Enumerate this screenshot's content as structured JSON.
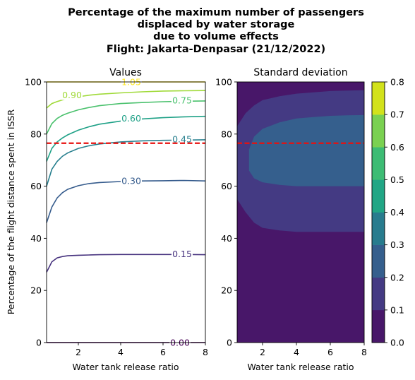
{
  "figure": {
    "title_lines": [
      "Percentage of the maximum number of passengers",
      "displaced by water storage",
      "due to volume effects",
      "Flight: Jakarta-Denpasar (21/12/2022)"
    ]
  },
  "chart_data": [
    {
      "type": "line",
      "title": "Values",
      "xlabel": "Water tank release ratio",
      "ylabel": "Percentage of the flight distance spent in ISSR",
      "xlim": [
        0.5,
        8
      ],
      "ylim": [
        0,
        100
      ],
      "xticks": [
        2,
        4,
        6,
        8
      ],
      "yticks": [
        0,
        20,
        40,
        60,
        80,
        100
      ],
      "reference_line": {
        "y": 76.5,
        "color": "#e8100e",
        "style": "dashed"
      },
      "x": [
        0.5,
        0.75,
        1.0,
        1.25,
        1.5,
        2.0,
        2.5,
        3.0,
        4.0,
        5.0,
        6.0,
        7.0,
        8.0
      ],
      "series": [
        {
          "label": "0.00",
          "color": "#440154",
          "values": [
            0,
            0,
            0,
            0,
            0,
            0,
            0,
            0,
            0,
            0,
            0,
            0,
            0
          ]
        },
        {
          "label": "0.15",
          "color": "#46327e",
          "values": [
            27,
            31,
            32.5,
            33,
            33.3,
            33.5,
            33.6,
            33.7,
            33.8,
            33.8,
            33.8,
            33.8,
            33.7
          ]
        },
        {
          "label": "0.30",
          "color": "#365c8d",
          "values": [
            46,
            52,
            55.5,
            57.5,
            58.8,
            60.2,
            61,
            61.4,
            61.8,
            62,
            62.1,
            62.2,
            62
          ]
        },
        {
          "label": "0.45",
          "color": "#277f8e",
          "values": [
            60,
            66.5,
            69.5,
            71.5,
            72.8,
            74.5,
            75.5,
            76.2,
            77,
            77.4,
            77.6,
            77.7,
            77.8
          ]
        },
        {
          "label": "0.60",
          "color": "#1fa187",
          "values": [
            69.5,
            74.5,
            77,
            78.5,
            79.7,
            81.5,
            82.8,
            83.8,
            85,
            85.8,
            86.3,
            86.6,
            86.8
          ]
        },
        {
          "label": "0.75",
          "color": "#4ac16d",
          "values": [
            80,
            84,
            86,
            87.2,
            88,
            89.3,
            90.2,
            90.9,
            91.7,
            92.1,
            92.4,
            92.6,
            92.7
          ]
        },
        {
          "label": "0.90",
          "color": "#a0da39",
          "values": [
            90,
            91.7,
            92.5,
            93.1,
            93.6,
            94.3,
            94.9,
            95.3,
            95.8,
            96.2,
            96.5,
            96.6,
            96.7
          ]
        },
        {
          "label": "1.05",
          "color": "#fde725",
          "values": [
            100,
            100,
            100,
            100,
            100,
            100,
            100,
            100,
            100,
            100,
            100,
            100,
            100
          ]
        }
      ],
      "contour_labels": [
        {
          "text": "0.00",
          "x": 6.8,
          "y": 0,
          "color": "#440154"
        },
        {
          "text": "0.15",
          "x": 6.9,
          "y": 34,
          "color": "#46327e"
        },
        {
          "text": "0.30",
          "x": 4.5,
          "y": 62,
          "color": "#365c8d"
        },
        {
          "text": "0.45",
          "x": 6.9,
          "y": 78,
          "color": "#277f8e"
        },
        {
          "text": "0.60",
          "x": 4.5,
          "y": 86,
          "color": "#1fa187"
        },
        {
          "text": "0.75",
          "x": 6.9,
          "y": 93,
          "color": "#4ac16d"
        },
        {
          "text": "0.90",
          "x": 1.7,
          "y": 95,
          "color": "#a0da39"
        },
        {
          "text": "1.05",
          "x": 4.5,
          "y": 100,
          "color": "#fde725"
        }
      ]
    },
    {
      "type": "heatmap",
      "title": "Standard deviation",
      "xlabel": "Water tank release ratio",
      "xlim": [
        0.5,
        8
      ],
      "ylim": [
        0,
        100
      ],
      "xticks": [
        2,
        4,
        6,
        8
      ],
      "yticks": [
        0,
        20,
        40,
        60,
        80,
        100
      ],
      "reference_line": {
        "y": 76.5,
        "color": "#e8100e",
        "style": "dashed"
      },
      "levels": [
        {
          "range": [
            0.0,
            0.1
          ],
          "color": "#481769"
        },
        {
          "range": [
            0.1,
            0.2
          ],
          "color": "#443a83"
        },
        {
          "range": [
            0.2,
            0.3
          ],
          "color": "#355f8d"
        }
      ],
      "regions": [
        {
          "level": 1,
          "x_start": 0.5,
          "x": [
            0.5,
            1.0,
            1.5,
            2.0,
            3.0,
            4.0,
            5.0,
            6.0,
            7.0,
            8.0
          ],
          "y_low": [
            55,
            50,
            46,
            44,
            43,
            42.5,
            42.5,
            42.5,
            42.5,
            42.5
          ],
          "y_high": [
            83,
            88,
            91,
            93,
            94.5,
            95.5,
            96,
            96.5,
            96.7,
            96.8
          ]
        },
        {
          "level": 2,
          "x": [
            1.2,
            1.5,
            2.0,
            3.0,
            4.0,
            5.0,
            6.0,
            7.0,
            8.0
          ],
          "y_low": [
            66,
            63,
            61.5,
            60.5,
            60,
            60,
            60,
            60,
            60
          ],
          "y_high": [
            74,
            79,
            82,
            84.5,
            86,
            86.5,
            87,
            87.2,
            87.3
          ]
        }
      ],
      "colorbar": {
        "ticks": [
          "0.0",
          "0.1",
          "0.2",
          "0.3",
          "0.4",
          "0.5",
          "0.6",
          "0.7",
          "0.8"
        ],
        "colors": [
          "#481769",
          "#443a83",
          "#355f8d",
          "#287c8e",
          "#21a685",
          "#3dbc74",
          "#7ad151",
          "#d2e21b"
        ]
      }
    }
  ]
}
